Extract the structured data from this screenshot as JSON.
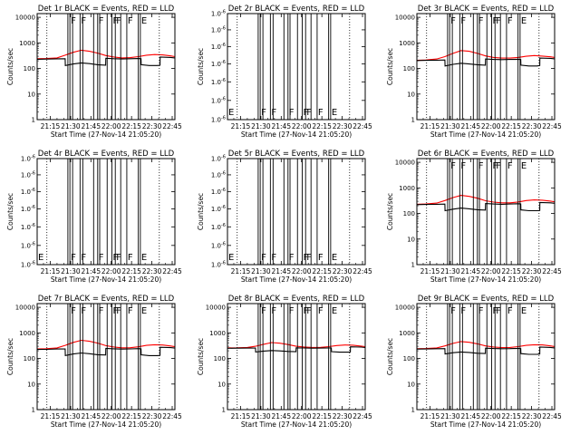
{
  "time_axis": {
    "tick_labels": [
      "21:15",
      "21:30",
      "21:45",
      "22:00",
      "22:15",
      "22:30",
      "22:45"
    ],
    "tick_minutes": [
      15,
      30,
      45,
      60,
      75,
      90,
      105
    ],
    "xlim_minutes": [
      5.33,
      107
    ],
    "xlabel": "Start Time (27-Nov-14 21:05:20)"
  },
  "ylabel": "Counts/sec",
  "colors": {
    "events": "#000000",
    "lld": "#ff0000",
    "frame": "#000000"
  },
  "markers": {
    "dotted_minutes": [
      12.5,
      95.5
    ],
    "solid_minutes": [
      28,
      29.5,
      31.5,
      37,
      39,
      47,
      50,
      51.5,
      57,
      60.5,
      63,
      67,
      71.5,
      80,
      81.5
    ],
    "flags": [
      {
        "label": "F",
        "minute": 29.5
      },
      {
        "label": "F",
        "minute": 37
      },
      {
        "label": "F",
        "minute": 50
      },
      {
        "label": "F",
        "minute": 60.5
      },
      {
        "label": "F",
        "minute": 63
      },
      {
        "label": "F",
        "minute": 71.5
      },
      {
        "label": "E",
        "minute": 81.5
      }
    ]
  },
  "chart_data": [
    {
      "type": "line",
      "id": "det1",
      "title": "Det 1r BLACK = Events, RED = LLD",
      "yscale": "log",
      "ylim": [
        1,
        14000
      ],
      "ytick_labels": [
        "1",
        "10",
        "100",
        "1000",
        "10000"
      ],
      "ytick_values": [
        1,
        10,
        100,
        1000,
        10000
      ],
      "series": [
        {
          "color_key": "lld",
          "x": [
            5.3,
            12,
            20,
            26,
            32,
            38,
            44,
            50,
            56,
            62,
            68,
            74,
            80,
            86,
            92,
            98,
            104,
            107
          ],
          "y": [
            240,
            245,
            260,
            330,
            430,
            520,
            470,
            400,
            320,
            280,
            260,
            265,
            290,
            330,
            350,
            340,
            310,
            290
          ]
        },
        {
          "color_key": "events",
          "x": [
            5.3,
            12,
            20,
            26,
            26.1,
            32,
            38,
            44,
            50,
            55.9,
            56,
            62,
            68,
            74,
            80,
            82,
            82.1,
            88,
            94,
            96,
            96.1,
            104,
            107
          ],
          "y": [
            230,
            232,
            238,
            240,
            130,
            150,
            165,
            155,
            140,
            135,
            250,
            240,
            235,
            240,
            245,
            240,
            140,
            130,
            130,
            135,
            280,
            270,
            260
          ]
        }
      ]
    },
    {
      "type": "line",
      "id": "det2",
      "title": "Det 2r BLACK = Events, RED = LLD",
      "yscale": "log",
      "ylim": [
        9e-07,
        1.1e-06
      ],
      "ytick_labels": [
        "1.0",
        "1.0",
        "1.0",
        "1.0",
        "1.0",
        "1.0",
        "1.0"
      ],
      "ytick_values": [
        9e-07,
        9.333e-07,
        9.667e-07,
        1e-06,
        1.0333e-06,
        1.0667e-06,
        1.1e-06
      ],
      "tick_exp": "-6",
      "series": []
    },
    {
      "type": "line",
      "id": "det3",
      "title": "Det 3r BLACK = Events, RED = LLD",
      "yscale": "log",
      "ylim": [
        1,
        14000
      ],
      "ytick_labels": [
        "1",
        "10",
        "100",
        "1000",
        "10000"
      ],
      "ytick_values": [
        1,
        10,
        100,
        1000,
        10000
      ],
      "series": [
        {
          "color_key": "lld",
          "x": [
            5.3,
            12,
            20,
            26,
            32,
            38,
            44,
            50,
            56,
            62,
            68,
            74,
            80,
            86,
            92,
            98,
            104,
            107
          ],
          "y": [
            210,
            215,
            235,
            290,
            390,
            500,
            470,
            390,
            310,
            270,
            255,
            255,
            270,
            300,
            320,
            305,
            285,
            270
          ]
        },
        {
          "color_key": "events",
          "x": [
            5.3,
            12,
            20,
            26,
            26.1,
            32,
            38,
            44,
            50,
            55.9,
            56,
            62,
            68,
            74,
            80,
            82,
            82.1,
            88,
            94,
            96,
            96.1,
            104,
            107
          ],
          "y": [
            205,
            208,
            212,
            215,
            125,
            145,
            160,
            150,
            140,
            135,
            235,
            225,
            222,
            225,
            230,
            225,
            135,
            125,
            125,
            130,
            255,
            248,
            238
          ]
        }
      ]
    },
    {
      "type": "line",
      "id": "det4",
      "title": "Det 4r BLACK = Events, RED = LLD",
      "yscale": "log",
      "ylim": [
        9e-07,
        1.1e-06
      ],
      "ytick_labels": [
        "1.0",
        "1.0",
        "1.0",
        "1.0",
        "1.0",
        "1.0",
        "1.0"
      ],
      "ytick_values": [
        9e-07,
        9.333e-07,
        9.667e-07,
        1e-06,
        1.0333e-06,
        1.0667e-06,
        1.1e-06
      ],
      "tick_exp": "-6",
      "series": []
    },
    {
      "type": "line",
      "id": "det5",
      "title": "Det 5r BLACK = Events, RED = LLD",
      "yscale": "log",
      "ylim": [
        9e-07,
        1.1e-06
      ],
      "ytick_labels": [
        "1.0",
        "1.0",
        "1.0",
        "1.0",
        "1.0",
        "1.0",
        "1.0"
      ],
      "ytick_values": [
        9e-07,
        9.333e-07,
        9.667e-07,
        1e-06,
        1.0333e-06,
        1.0667e-06,
        1.1e-06
      ],
      "tick_exp": "-6",
      "series": []
    },
    {
      "type": "line",
      "id": "det6",
      "title": "Det 6r BLACK = Events, RED = LLD",
      "yscale": "log",
      "ylim": [
        1,
        14000
      ],
      "ytick_labels": [
        "1",
        "10",
        "100",
        "1000",
        "10000"
      ],
      "ytick_values": [
        1,
        10,
        100,
        1000,
        10000
      ],
      "series": [
        {
          "color_key": "lld",
          "x": [
            5.3,
            12,
            20,
            26,
            32,
            38,
            44,
            50,
            56,
            62,
            68,
            74,
            80,
            86,
            92,
            98,
            104,
            107
          ],
          "y": [
            230,
            235,
            255,
            320,
            420,
            510,
            465,
            395,
            315,
            278,
            262,
            262,
            282,
            320,
            340,
            330,
            305,
            285
          ]
        },
        {
          "color_key": "events",
          "x": [
            5.3,
            12,
            20,
            26,
            26.1,
            32,
            38,
            44,
            50,
            55.9,
            56,
            62,
            68,
            74,
            80,
            82,
            82.1,
            88,
            94,
            96,
            96.1,
            104,
            107
          ],
          "y": [
            222,
            225,
            230,
            232,
            128,
            148,
            162,
            152,
            140,
            136,
            245,
            235,
            230,
            234,
            240,
            236,
            138,
            128,
            128,
            132,
            270,
            262,
            250
          ]
        }
      ]
    },
    {
      "type": "line",
      "id": "det7",
      "title": "Det 7r BLACK = Events, RED = LLD",
      "yscale": "log",
      "ylim": [
        1,
        14000
      ],
      "ytick_labels": [
        "1",
        "10",
        "100",
        "1000",
        "10000"
      ],
      "ytick_values": [
        1,
        10,
        100,
        1000,
        10000
      ],
      "series": [
        {
          "color_key": "lld",
          "x": [
            5.3,
            12,
            20,
            26,
            32,
            38,
            44,
            50,
            56,
            62,
            68,
            74,
            80,
            86,
            92,
            98,
            104,
            107
          ],
          "y": [
            235,
            240,
            258,
            325,
            425,
            515,
            468,
            398,
            318,
            280,
            262,
            264,
            285,
            325,
            345,
            335,
            308,
            288
          ]
        },
        {
          "color_key": "events",
          "x": [
            5.3,
            12,
            20,
            26,
            26.1,
            32,
            38,
            44,
            50,
            55.9,
            56,
            62,
            68,
            74,
            80,
            82,
            82.1,
            88,
            94,
            96,
            96.1,
            104,
            107
          ],
          "y": [
            225,
            228,
            234,
            236,
            130,
            150,
            164,
            154,
            141,
            137,
            248,
            238,
            233,
            237,
            242,
            238,
            139,
            129,
            129,
            133,
            275,
            266,
            255
          ]
        }
      ]
    },
    {
      "type": "line",
      "id": "det8",
      "title": "Det 8r BLACK = Events, RED = LLD",
      "yscale": "log",
      "ylim": [
        1,
        14000
      ],
      "ytick_labels": [
        "1",
        "10",
        "100",
        "1000",
        "10000"
      ],
      "ytick_values": [
        1,
        10,
        100,
        1000,
        10000
      ],
      "series": [
        {
          "color_key": "lld",
          "x": [
            5.3,
            12,
            20,
            26,
            32,
            38,
            44,
            50,
            56,
            62,
            68,
            74,
            80,
            86,
            92,
            98,
            104,
            107
          ],
          "y": [
            260,
            262,
            270,
            300,
            360,
            420,
            395,
            350,
            300,
            280,
            270,
            272,
            290,
            320,
            335,
            330,
            305,
            290
          ]
        },
        {
          "color_key": "events",
          "x": [
            5.3,
            12,
            20,
            26,
            26.1,
            32,
            38,
            44,
            50,
            55.9,
            56,
            62,
            68,
            74,
            80,
            82,
            82.1,
            88,
            94,
            96,
            96.1,
            104,
            107
          ],
          "y": [
            250,
            252,
            255,
            256,
            180,
            195,
            205,
            198,
            188,
            184,
            262,
            256,
            252,
            255,
            260,
            256,
            185,
            176,
            176,
            180,
            285,
            278,
            268
          ]
        }
      ]
    },
    {
      "type": "line",
      "id": "det9",
      "title": "Det 9r BLACK = Events, RED = LLD",
      "yscale": "log",
      "ylim": [
        1,
        14000
      ],
      "ytick_labels": [
        "1",
        "10",
        "100",
        "1000",
        "10000"
      ],
      "ytick_values": [
        1,
        10,
        100,
        1000,
        10000
      ],
      "series": [
        {
          "color_key": "lld",
          "x": [
            5.3,
            12,
            20,
            26,
            32,
            38,
            44,
            50,
            56,
            62,
            68,
            74,
            80,
            86,
            92,
            98,
            104,
            107
          ],
          "y": [
            240,
            244,
            260,
            310,
            390,
            460,
            430,
            375,
            310,
            282,
            268,
            270,
            290,
            325,
            345,
            338,
            310,
            292
          ]
        },
        {
          "color_key": "events",
          "x": [
            5.3,
            12,
            20,
            26,
            26.1,
            32,
            38,
            44,
            50,
            55.9,
            56,
            62,
            68,
            74,
            80,
            82,
            82.1,
            88,
            94,
            96,
            96.1,
            104,
            107
          ],
          "y": [
            232,
            235,
            240,
            242,
            150,
            168,
            180,
            172,
            160,
            156,
            252,
            244,
            240,
            243,
            248,
            244,
            155,
            145,
            145,
            150,
            278,
            270,
            258
          ]
        }
      ]
    }
  ]
}
